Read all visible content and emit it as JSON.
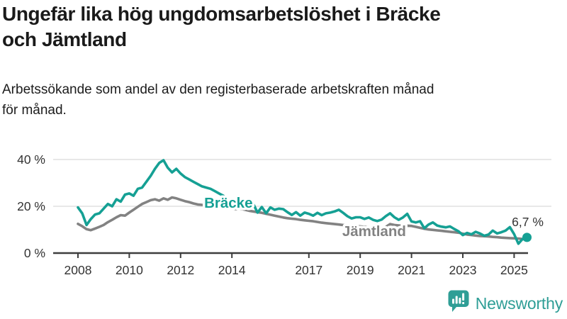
{
  "header": {
    "title_line1": "Ungefär lika hög ungdomsarbetslöshet i Bräcke",
    "title_line2": "och Jämtland",
    "subtitle_line1": "Arbetssökande som andel av den registerbaserade arbetskraften månad",
    "subtitle_line2": "för månad."
  },
  "chart_data": {
    "type": "line",
    "x_start": 2008,
    "x_step_years": 0.16667,
    "x_ticks": [
      2008,
      2010,
      2012,
      2014,
      2017,
      2019,
      2021,
      2023,
      2025
    ],
    "y_ticks": [
      0,
      20,
      40
    ],
    "y_tick_labels": [
      "0 %",
      "20 %",
      "40 %"
    ],
    "xlim": [
      2007.1,
      2026.4
    ],
    "ylim": [
      0,
      43
    ],
    "grid": "horizontal-only",
    "legend_position": "inline-labels",
    "colors": {
      "grid": "#d9d9d9",
      "axis": "#3d3d3d",
      "tick_text": "#333333"
    },
    "series": [
      {
        "name": "Bräcke",
        "color": "#15a094",
        "values": [
          19.5,
          17.0,
          12.0,
          14.5,
          16.5,
          17.0,
          19.0,
          21.0,
          20.0,
          23.0,
          22.0,
          25.0,
          25.5,
          24.5,
          27.5,
          28.0,
          30.5,
          33.0,
          36.0,
          38.5,
          39.7,
          36.5,
          34.5,
          36.0,
          34.0,
          32.5,
          31.5,
          30.5,
          29.5,
          28.5,
          28.0,
          27.5,
          26.5,
          25.5,
          24.5,
          23.0,
          22.5,
          21.5,
          21.0,
          20.5,
          21.0,
          21.0,
          17.3,
          19.7,
          17.0,
          19.5,
          18.5,
          19.0,
          18.8,
          17.5,
          16.3,
          17.5,
          16.0,
          17.3,
          16.8,
          16.0,
          17.2,
          16.2,
          17.0,
          17.3,
          17.8,
          18.5,
          17.2,
          15.8,
          14.8,
          15.3,
          15.3,
          14.6,
          15.2,
          14.2,
          13.7,
          14.3,
          15.8,
          17.0,
          15.3,
          14.2,
          15.2,
          16.8,
          13.5,
          13.1,
          13.6,
          10.6,
          12.2,
          13.1,
          11.8,
          11.3,
          11.0,
          11.4,
          10.3,
          9.3,
          7.7,
          8.6,
          8.0,
          9.1,
          8.4,
          7.4,
          7.9,
          9.6,
          8.4,
          8.9,
          9.6,
          11.1,
          8.1,
          4.0,
          6.1,
          6.7
        ]
      },
      {
        "name": "Jämtland",
        "color": "#828282",
        "values": [
          12.5,
          11.5,
          10.2,
          9.8,
          10.5,
          11.2,
          12.0,
          13.2,
          14.2,
          15.3,
          16.2,
          16.0,
          17.3,
          18.5,
          19.8,
          21.0,
          21.8,
          22.6,
          23.0,
          22.4,
          23.4,
          22.8,
          23.8,
          23.4,
          22.8,
          22.2,
          21.8,
          21.2,
          20.8,
          20.6,
          20.4,
          20.1,
          20.3,
          19.8,
          19.6,
          19.3,
          19.1,
          18.8,
          19.0,
          18.5,
          18.1,
          17.8,
          17.5,
          17.2,
          16.8,
          16.4,
          16.0,
          15.6,
          15.2,
          14.9,
          14.7,
          14.5,
          14.2,
          14.0,
          13.8,
          13.6,
          13.3,
          13.0,
          12.8,
          12.6,
          12.4,
          12.2,
          12.0,
          11.8,
          11.7,
          11.6,
          11.4,
          11.2,
          11.0,
          10.8,
          10.6,
          10.8,
          11.2,
          12.4,
          12.0,
          11.8,
          11.6,
          11.7,
          11.6,
          11.2,
          10.8,
          10.4,
          10.1,
          9.9,
          9.7,
          9.5,
          9.3,
          9.1,
          8.9,
          8.7,
          8.3,
          7.9,
          7.7,
          7.5,
          7.3,
          7.2,
          7.1,
          6.9,
          6.8,
          6.6,
          6.5,
          6.4,
          6.3,
          6.2,
          6.0,
          5.7
        ]
      }
    ],
    "series_labels": [
      {
        "series": "Bräcke",
        "text": "Bräcke",
        "x": 2012.92,
        "y": 19.4
      },
      {
        "series": "Jämtland",
        "text": "Jämtland",
        "x": 2018.3,
        "y": 7.3
      }
    ],
    "end_annotation": {
      "series": "Bräcke",
      "label": "6,7 %",
      "value": 6.7
    }
  },
  "footer": {
    "brand": "Newsworthy",
    "brand_color": "#2f9e96",
    "logo_icon": "newsworthy-chart-bubble-icon"
  }
}
